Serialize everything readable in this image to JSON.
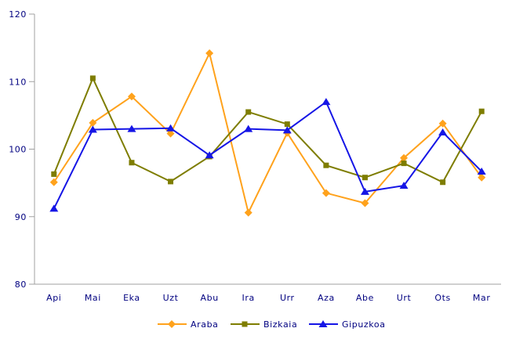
{
  "chart_data": {
    "type": "line",
    "title": "",
    "xlabel": "",
    "ylabel": "",
    "categories": [
      "Api",
      "Mai",
      "Eka",
      "Uzt",
      "Abu",
      "Ira",
      "Urr",
      "Aza",
      "Abe",
      "Urt",
      "Ots",
      "Mar"
    ],
    "series": [
      {
        "name": "Araba",
        "marker": "diamond",
        "color": "#FFA21C",
        "values": [
          95.1,
          103.9,
          107.8,
          102.3,
          114.2,
          90.6,
          102.4,
          93.5,
          92.0,
          98.7,
          103.8,
          95.8
        ]
      },
      {
        "name": "Bizkaia",
        "marker": "square",
        "color": "#7E7D00",
        "values": [
          96.3,
          110.5,
          98.0,
          95.2,
          98.9,
          105.5,
          103.7,
          97.6,
          95.8,
          97.9,
          95.1,
          105.6
        ]
      },
      {
        "name": "Gipuzkoa",
        "marker": "triangle-up",
        "color": "#1515E6",
        "values": [
          91.2,
          102.9,
          103.0,
          103.1,
          99.1,
          103.0,
          102.8,
          107.0,
          93.7,
          94.6,
          102.5,
          96.7
        ]
      }
    ],
    "ylim": [
      80,
      120
    ],
    "yticks": [
      80,
      90,
      100,
      110,
      120
    ],
    "grid": false,
    "legend_position": "bottom",
    "colors": {
      "axis": "#A0A0A0",
      "label": "#000080",
      "background": "#FFFFFF"
    }
  }
}
